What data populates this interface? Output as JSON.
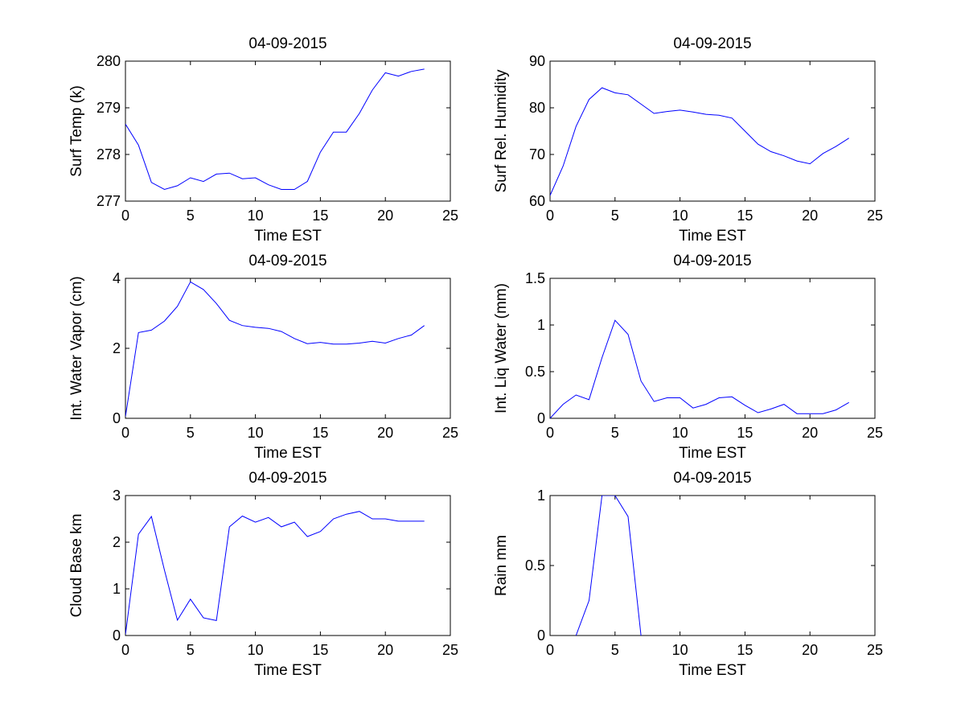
{
  "chart_data": [
    {
      "type": "line",
      "title": "04-09-2015",
      "xlabel": "Time EST",
      "ylabel": "Surf Temp (k)",
      "xlim": [
        0,
        25
      ],
      "ylim": [
        277,
        280
      ],
      "xticks": [
        "0",
        "5",
        "10",
        "15",
        "20",
        "25"
      ],
      "yticks": [
        "277",
        "278",
        "279",
        "280"
      ],
      "series": [
        {
          "name": "Surf Temp",
          "x": [
            0,
            1,
            2,
            3,
            4,
            5,
            6,
            7,
            8,
            9,
            10,
            11,
            12,
            13,
            14,
            15,
            16,
            17,
            18,
            19,
            20,
            21,
            22,
            23
          ],
          "values": [
            278.65,
            278.2,
            277.4,
            277.25,
            277.33,
            277.5,
            277.42,
            277.58,
            277.6,
            277.48,
            277.5,
            277.35,
            277.25,
            277.25,
            277.42,
            278.05,
            278.48,
            278.48,
            278.88,
            279.38,
            279.75,
            279.68,
            279.78,
            279.83
          ]
        }
      ]
    },
    {
      "type": "line",
      "title": "04-09-2015",
      "xlabel": "Time EST",
      "ylabel": "Surf Rel. Humidity",
      "xlim": [
        0,
        25
      ],
      "ylim": [
        60,
        90
      ],
      "xticks": [
        "0",
        "5",
        "10",
        "15",
        "20",
        "25"
      ],
      "yticks": [
        "60",
        "70",
        "80",
        "90"
      ],
      "series": [
        {
          "name": "Surf Rel. Humidity",
          "x": [
            0,
            1,
            2,
            3,
            4,
            5,
            6,
            7,
            8,
            9,
            10,
            11,
            12,
            13,
            14,
            15,
            16,
            17,
            18,
            19,
            20,
            21,
            22,
            23
          ],
          "values": [
            61.2,
            67.5,
            76.0,
            81.8,
            84.3,
            83.2,
            82.8,
            80.8,
            78.8,
            79.2,
            79.5,
            79.1,
            78.6,
            78.4,
            77.8,
            75.0,
            72.2,
            70.6,
            69.7,
            68.6,
            68.0,
            70.2,
            71.7,
            73.5
          ]
        }
      ]
    },
    {
      "type": "line",
      "title": "04-09-2015",
      "xlabel": "Time EST",
      "ylabel": "Int. Water Vapor (cm)",
      "xlim": [
        0,
        25
      ],
      "ylim": [
        0,
        4
      ],
      "xticks": [
        "0",
        "5",
        "10",
        "15",
        "20",
        "25"
      ],
      "yticks": [
        "0",
        "2",
        "4"
      ],
      "series": [
        {
          "name": "Int. Water Vapor",
          "x": [
            0,
            1,
            2,
            3,
            4,
            5,
            6,
            7,
            8,
            9,
            10,
            11,
            12,
            13,
            14,
            15,
            16,
            17,
            18,
            19,
            20,
            21,
            22,
            23
          ],
          "values": [
            0.05,
            2.45,
            2.52,
            2.78,
            3.2,
            3.9,
            3.68,
            3.28,
            2.8,
            2.65,
            2.6,
            2.57,
            2.48,
            2.28,
            2.13,
            2.17,
            2.12,
            2.12,
            2.15,
            2.2,
            2.15,
            2.28,
            2.38,
            2.65
          ]
        }
      ]
    },
    {
      "type": "line",
      "title": "04-09-2015",
      "xlabel": "Time EST",
      "ylabel": "Int. Liq Water (mm)",
      "xlim": [
        0,
        25
      ],
      "ylim": [
        0,
        1.5
      ],
      "xticks": [
        "0",
        "5",
        "10",
        "15",
        "20",
        "25"
      ],
      "yticks": [
        "0",
        "0.5",
        "1",
        "1.5"
      ],
      "series": [
        {
          "name": "Int. Liq Water",
          "x": [
            0,
            1,
            2,
            3,
            4,
            5,
            6,
            7,
            8,
            9,
            10,
            11,
            12,
            13,
            14,
            15,
            16,
            17,
            18,
            19,
            20,
            21,
            22,
            23
          ],
          "values": [
            0.0,
            0.15,
            0.25,
            0.2,
            0.65,
            1.05,
            0.9,
            0.4,
            0.18,
            0.22,
            0.22,
            0.11,
            0.15,
            0.22,
            0.23,
            0.14,
            0.06,
            0.1,
            0.15,
            0.05,
            0.05,
            0.05,
            0.09,
            0.17
          ]
        }
      ]
    },
    {
      "type": "line",
      "title": "04-09-2015",
      "xlabel": "Time EST",
      "ylabel": "Cloud Base km",
      "xlim": [
        0,
        25
      ],
      "ylim": [
        0,
        3
      ],
      "xticks": [
        "0",
        "5",
        "10",
        "15",
        "20",
        "25"
      ],
      "yticks": [
        "0",
        "1",
        "2",
        "3"
      ],
      "series": [
        {
          "name": "Cloud Base",
          "x": [
            0,
            1,
            2,
            3,
            4,
            5,
            6,
            7,
            8,
            9,
            10,
            11,
            12,
            13,
            14,
            15,
            16,
            17,
            18,
            19,
            20,
            21,
            22,
            23
          ],
          "values": [
            0.02,
            2.17,
            2.55,
            1.4,
            0.33,
            0.78,
            0.38,
            0.32,
            2.33,
            2.56,
            2.43,
            2.53,
            2.33,
            2.43,
            2.12,
            2.23,
            2.5,
            2.6,
            2.66,
            2.5,
            2.5,
            2.45,
            2.45,
            2.45
          ]
        }
      ]
    },
    {
      "type": "line",
      "title": "04-09-2015",
      "xlabel": "Time EST",
      "ylabel": "Rain mm",
      "xlim": [
        0,
        25
      ],
      "ylim": [
        0,
        1
      ],
      "xticks": [
        "0",
        "5",
        "10",
        "15",
        "20",
        "25"
      ],
      "yticks": [
        "0",
        "0.5",
        "1"
      ],
      "series": [
        {
          "name": "Rain",
          "x": [
            2,
            3,
            4,
            5,
            6,
            7
          ],
          "values": [
            0,
            0.25,
            1.0,
            1.0,
            0.85,
            0
          ]
        }
      ]
    }
  ]
}
